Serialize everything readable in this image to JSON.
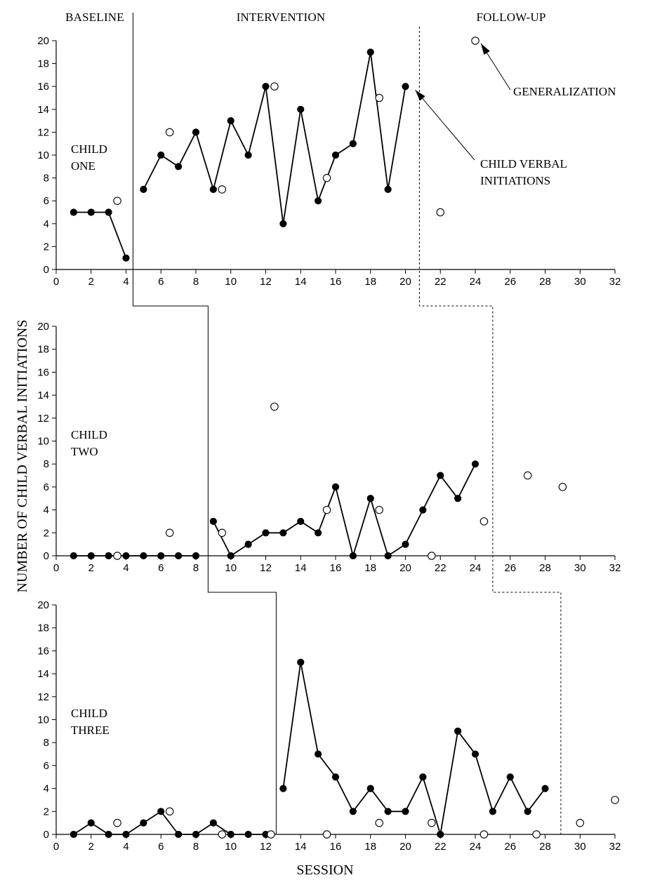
{
  "chart_data": {
    "type": "scatter",
    "ylabel": "NUMBER OF CHILD VERBAL INITIATIONS",
    "xlabel": "SESSION",
    "phases": [
      "BASELINE",
      "INTERVENTION",
      "FOLLOW-UP"
    ],
    "annotations": {
      "generalization": "GENERALIZATION",
      "verbal_line1": "CHILD VERBAL",
      "verbal_line2": "INITIATIONS"
    },
    "xlim": [
      0,
      32
    ],
    "ylim": [
      0,
      20
    ],
    "x_ticks": [
      0,
      2,
      4,
      6,
      8,
      10,
      12,
      14,
      16,
      18,
      20,
      22,
      24,
      26,
      28,
      30,
      32
    ],
    "y_ticks": [
      0,
      2,
      4,
      6,
      8,
      10,
      12,
      14,
      16,
      18,
      20
    ],
    "panels": [
      {
        "label_line1": "CHILD",
        "label_line2": "ONE",
        "phase_change_solid_x": 4.4,
        "phase_change_dashed_x": 20.8,
        "baseline": [
          [
            1,
            5
          ],
          [
            2,
            5
          ],
          [
            3,
            5
          ],
          [
            4,
            1
          ]
        ],
        "intervention": [
          [
            5,
            7
          ],
          [
            6,
            10
          ],
          [
            7,
            9
          ],
          [
            8,
            12
          ],
          [
            9,
            7
          ],
          [
            10,
            13
          ],
          [
            11,
            10
          ],
          [
            12,
            16
          ],
          [
            13,
            4
          ],
          [
            14,
            14
          ],
          [
            15,
            6
          ],
          [
            16,
            10
          ],
          [
            17,
            11
          ],
          [
            18,
            19
          ],
          [
            19,
            7
          ],
          [
            20,
            16
          ]
        ],
        "generalization": [
          [
            3.5,
            6
          ],
          [
            6.5,
            12
          ],
          [
            9.5,
            7
          ],
          [
            12.5,
            16
          ],
          [
            15.5,
            8
          ],
          [
            18.5,
            15
          ],
          [
            22,
            5
          ],
          [
            24,
            20
          ]
        ]
      },
      {
        "label_line1": "CHILD",
        "label_line2": "TWO",
        "phase_change_solid_x": 8.7,
        "phase_change_dashed_x": 25,
        "baseline": [
          [
            1,
            0
          ],
          [
            2,
            0
          ],
          [
            3,
            0
          ],
          [
            4,
            0
          ],
          [
            5,
            0
          ],
          [
            6,
            0
          ],
          [
            7,
            0
          ],
          [
            8,
            0
          ]
        ],
        "intervention": [
          [
            9,
            3
          ],
          [
            10,
            0
          ],
          [
            11,
            1
          ],
          [
            12,
            2
          ],
          [
            13,
            2
          ],
          [
            14,
            3
          ],
          [
            15,
            2
          ],
          [
            16,
            6
          ],
          [
            17,
            0
          ],
          [
            18,
            5
          ],
          [
            19,
            0
          ],
          [
            20,
            1
          ],
          [
            21,
            4
          ],
          [
            22,
            7
          ],
          [
            23,
            5
          ],
          [
            24,
            8
          ]
        ],
        "generalization": [
          [
            3.5,
            0
          ],
          [
            6.5,
            2
          ],
          [
            9.5,
            2
          ],
          [
            12.5,
            13
          ],
          [
            15.5,
            4
          ],
          [
            18.5,
            4
          ],
          [
            21.5,
            0
          ],
          [
            24.5,
            3
          ],
          [
            27,
            7
          ],
          [
            29,
            6
          ]
        ]
      },
      {
        "label_line1": "CHILD",
        "label_line2": "THREE",
        "phase_change_solid_x": 12.6,
        "phase_change_dashed_x": 28.9,
        "baseline": [
          [
            1,
            0
          ],
          [
            2,
            1
          ],
          [
            3,
            0
          ],
          [
            4,
            0
          ],
          [
            5,
            1
          ],
          [
            6,
            2
          ],
          [
            7,
            0
          ],
          [
            8,
            0
          ],
          [
            9,
            1
          ],
          [
            10,
            0
          ],
          [
            11,
            0
          ],
          [
            12,
            0
          ]
        ],
        "intervention": [
          [
            13,
            4
          ],
          [
            14,
            15
          ],
          [
            15,
            7
          ],
          [
            16,
            5
          ],
          [
            17,
            2
          ],
          [
            18,
            4
          ],
          [
            19,
            2
          ],
          [
            20,
            2
          ],
          [
            21,
            5
          ],
          [
            22,
            0
          ],
          [
            23,
            9
          ],
          [
            24,
            7
          ],
          [
            25,
            2
          ],
          [
            26,
            5
          ],
          [
            27,
            2
          ],
          [
            28,
            4
          ]
        ],
        "generalization": [
          [
            3.5,
            1
          ],
          [
            6.5,
            2
          ],
          [
            9.5,
            0
          ],
          [
            12.3,
            0
          ],
          [
            15.5,
            0
          ],
          [
            18.5,
            1
          ],
          [
            21.5,
            1
          ],
          [
            24.5,
            0
          ],
          [
            27.5,
            0
          ],
          [
            30,
            1
          ],
          [
            32,
            3
          ]
        ]
      }
    ]
  }
}
